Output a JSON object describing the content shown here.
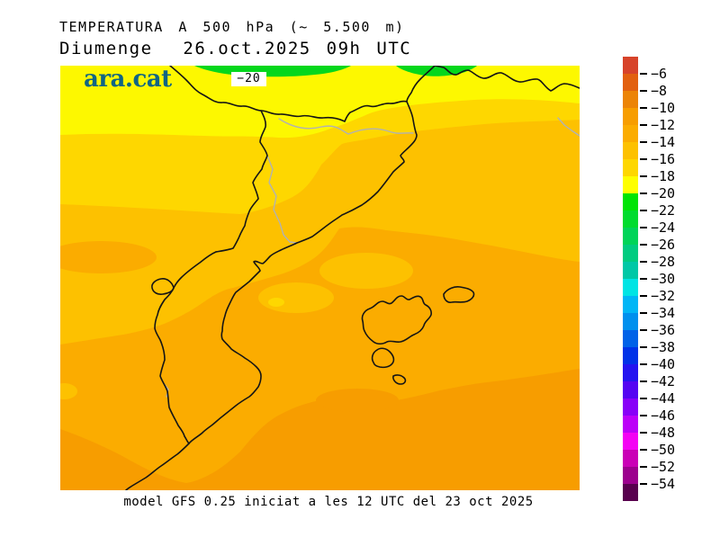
{
  "header": {
    "title": "TEMPERATURA A 500 hPa (~ 5.500 m)",
    "subtitle": "Diumenge  26.oct.2025 09h UTC"
  },
  "branding": {
    "logo_text": "ara.cat",
    "logo_color": "#0f6584"
  },
  "map": {
    "contour_label": "−20",
    "zone_colors": {
      "yellow_18_20": "#fdf800",
      "pale_amber_16_18": "#fed700",
      "amber_14_16": "#fdc100",
      "orange_12_14": "#fbac00",
      "deep_orange_10_12": "#f79d00",
      "green_20_22": "#04d71c"
    },
    "line_colors": {
      "coast": "#151515",
      "region": "#b2b2b2"
    },
    "label_box_color": "#ffffff"
  },
  "colorbar": {
    "tick_labels": [
      "−6",
      "−8",
      "−10",
      "−12",
      "−14",
      "−16",
      "−18",
      "−20",
      "−22",
      "−24",
      "−26",
      "−28",
      "−30",
      "−32",
      "−34",
      "−36",
      "−38",
      "−40",
      "−42",
      "−44",
      "−46",
      "−48",
      "−50",
      "−52",
      "−54"
    ],
    "segment_colors": [
      "#d7432a",
      "#e2600f",
      "#ec8407",
      "#f79d00",
      "#fbac00",
      "#fdc100",
      "#fed700",
      "#feff00",
      "#00e405",
      "#00dc2e",
      "#00d458",
      "#00cc80",
      "#00c8a6",
      "#00e4e4",
      "#00b6f6",
      "#0090ee",
      "#0062e8",
      "#0032e8",
      "#2414f0",
      "#5404f2",
      "#8800f8",
      "#bc00f8",
      "#f402f4",
      "#ca00b6",
      "#9c008e",
      "#58004e"
    ],
    "segment_height": 19,
    "segment_width": 17
  },
  "footer": {
    "caption": "model GFS 0.25 iniciat a les 12 UTC del 23 oct 2025"
  }
}
